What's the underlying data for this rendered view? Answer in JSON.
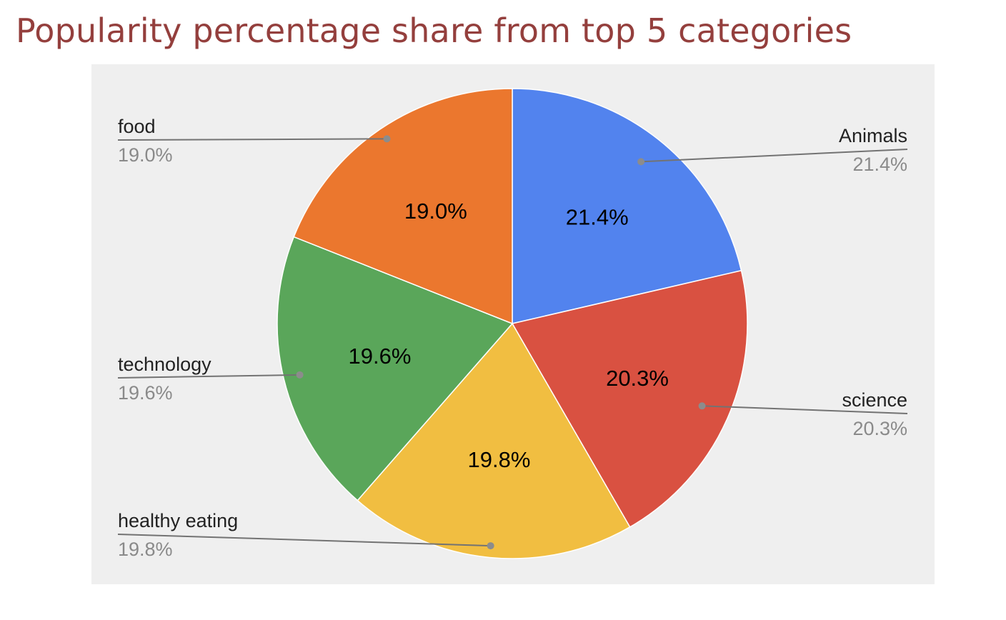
{
  "title": "Popularity percentage share from top 5 categories",
  "chart_data": {
    "type": "pie",
    "title": "Popularity percentage share from top 5 categories",
    "categories": [
      "Animals",
      "science",
      "healthy eating",
      "technology",
      "food"
    ],
    "values": [
      21.4,
      20.3,
      19.8,
      19.6,
      19.0
    ],
    "value_labels": [
      "21.4%",
      "20.3%",
      "19.8%",
      "19.6%",
      "19.0%"
    ],
    "colors": [
      "#5283ee",
      "#d95141",
      "#f1be41",
      "#5aa65a",
      "#eb772e"
    ],
    "start_angle": "top",
    "direction": "clockwise",
    "legend": "leader-line labels"
  }
}
